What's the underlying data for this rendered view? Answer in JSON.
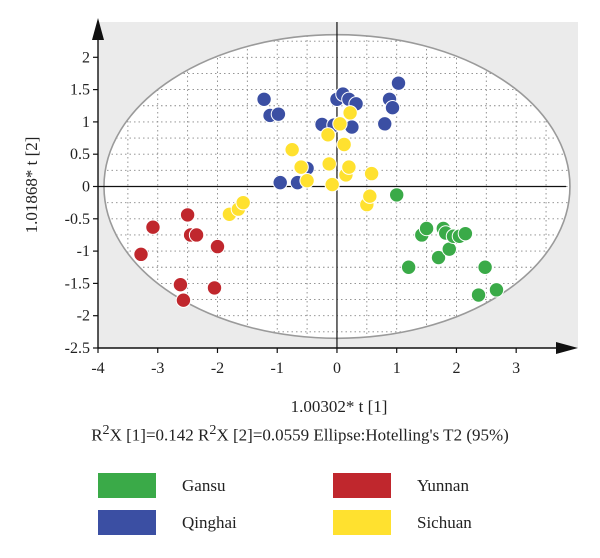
{
  "chart_data": {
    "type": "scatter",
    "title": "",
    "xlabel": "1.00302* t [1]",
    "ylabel": "1.01868* t [2]",
    "xlim": [
      -4,
      4
    ],
    "ylim": [
      -2.5,
      2.5
    ],
    "xticks": [
      "-4",
      "-3",
      "-2",
      "-1",
      "0",
      "1",
      "2",
      "3"
    ],
    "yticks": [
      "2",
      "1.5",
      "1",
      "0.5",
      "0",
      "-0.5",
      "-1",
      "-1.5",
      "-2",
      "-2.5"
    ],
    "grid": true,
    "ellipse": {
      "label": "Hotelling's T2 (95%)",
      "rx": 3.9,
      "ry": 2.35
    },
    "caption": {
      "part1": "R",
      "sup1": "2",
      "part2": "X [1]=0.142 R",
      "sup2": "2",
      "part3": "X [2]=0.0559 Ellipse:Hotelling's T2 (95%)"
    },
    "legend_position": "bottom",
    "series": [
      {
        "name": "Gansu",
        "color": "#3aaa48",
        "points": [
          [
            1.0,
            -0.13
          ],
          [
            1.2,
            -1.25
          ],
          [
            1.42,
            -0.75
          ],
          [
            1.5,
            -0.65
          ],
          [
            1.7,
            -1.1
          ],
          [
            1.78,
            -0.65
          ],
          [
            1.82,
            -0.72
          ],
          [
            1.88,
            -0.97
          ],
          [
            1.95,
            -0.77
          ],
          [
            2.05,
            -0.77
          ],
          [
            2.15,
            -0.73
          ],
          [
            2.37,
            -1.68
          ],
          [
            2.48,
            -1.25
          ],
          [
            2.67,
            -1.6
          ]
        ]
      },
      {
        "name": "Yunnan",
        "color": "#c0272d",
        "points": [
          [
            -3.28,
            -1.05
          ],
          [
            -3.08,
            -0.63
          ],
          [
            -2.62,
            -1.52
          ],
          [
            -2.57,
            -1.76
          ],
          [
            -2.5,
            -0.44
          ],
          [
            -2.45,
            -0.75
          ],
          [
            -2.35,
            -0.75
          ],
          [
            -2.05,
            -1.57
          ],
          [
            -2.0,
            -0.93
          ]
        ]
      },
      {
        "name": "Qinghai",
        "color": "#3b4fa3",
        "points": [
          [
            -1.22,
            1.35
          ],
          [
            -1.12,
            1.1
          ],
          [
            -0.98,
            1.12
          ],
          [
            -0.95,
            0.06
          ],
          [
            -0.66,
            0.06
          ],
          [
            -0.5,
            0.28
          ],
          [
            -0.25,
            0.96
          ],
          [
            -0.05,
            0.95
          ],
          [
            0.0,
            1.35
          ],
          [
            0.1,
            1.43
          ],
          [
            0.2,
            1.35
          ],
          [
            0.25,
            0.92
          ],
          [
            0.32,
            1.28
          ],
          [
            0.8,
            0.97
          ],
          [
            0.88,
            1.35
          ],
          [
            0.93,
            1.22
          ],
          [
            1.03,
            1.6
          ]
        ]
      },
      {
        "name": "Sichuan",
        "color": "#ffe12f",
        "points": [
          [
            -1.8,
            -0.43
          ],
          [
            -1.65,
            -0.35
          ],
          [
            -1.57,
            -0.25
          ],
          [
            -0.75,
            0.57
          ],
          [
            -0.6,
            0.3
          ],
          [
            -0.5,
            0.09
          ],
          [
            -0.15,
            0.8
          ],
          [
            -0.13,
            0.35
          ],
          [
            -0.08,
            0.03
          ],
          [
            0.05,
            0.97
          ],
          [
            0.12,
            0.65
          ],
          [
            0.15,
            0.18
          ],
          [
            0.2,
            0.3
          ],
          [
            0.22,
            1.14
          ],
          [
            0.5,
            -0.28
          ],
          [
            0.55,
            -0.15
          ],
          [
            0.58,
            0.2
          ]
        ]
      }
    ]
  }
}
